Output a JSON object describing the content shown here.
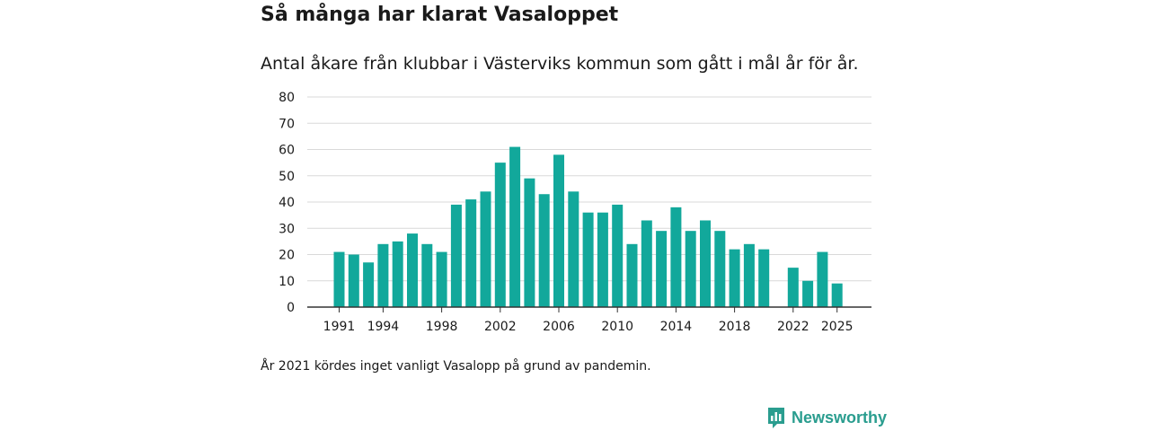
{
  "title": "Så många har klarat Vasaloppet",
  "subtitle": "Antal åkare från klubbar i Västerviks kommun som gått i mål år för år.",
  "note": "År 2021 kördes inget vanligt Vasalopp på grund av pandemin.",
  "brand": {
    "name": "Newsworthy",
    "color": "#2a9d8f"
  },
  "colors": {
    "bar": "#12a89b",
    "grid": "#d9d9d9",
    "axis": "#333333",
    "text": "#1a1a1a"
  },
  "chart_data": {
    "type": "bar",
    "title": "Så många har klarat Vasaloppet",
    "xlabel": "",
    "ylabel": "",
    "ylim": [
      0,
      80
    ],
    "yticks": [
      0,
      10,
      20,
      30,
      40,
      50,
      60,
      70,
      80
    ],
    "xticks": [
      1991,
      1994,
      1998,
      2002,
      2006,
      2010,
      2014,
      2018,
      2022,
      2025
    ],
    "categories": [
      1991,
      1992,
      1993,
      1994,
      1995,
      1996,
      1997,
      1998,
      1999,
      2000,
      2001,
      2002,
      2003,
      2004,
      2005,
      2006,
      2007,
      2008,
      2009,
      2010,
      2011,
      2012,
      2013,
      2014,
      2015,
      2016,
      2017,
      2018,
      2019,
      2020,
      2021,
      2022,
      2023,
      2024,
      2025
    ],
    "values": [
      21,
      20,
      17,
      24,
      25,
      28,
      24,
      21,
      39,
      41,
      44,
      55,
      61,
      49,
      43,
      58,
      44,
      36,
      36,
      39,
      24,
      33,
      29,
      38,
      29,
      33,
      29,
      22,
      24,
      22,
      null,
      15,
      10,
      21,
      9
    ],
    "grid": true
  }
}
